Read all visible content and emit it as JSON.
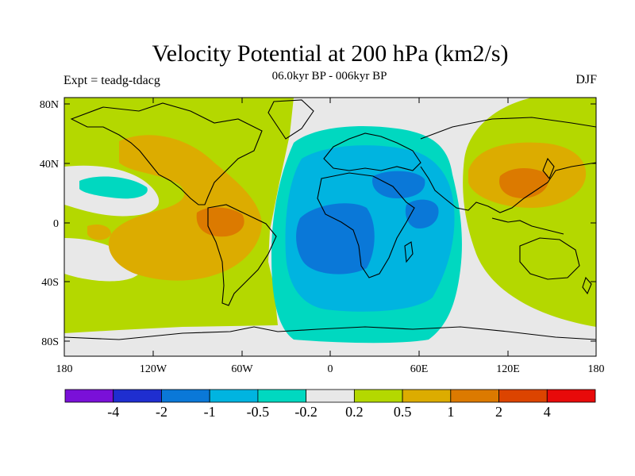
{
  "title": "Velocity Potential at 200 hPa (km2/s)",
  "left_string": "Expt = teadg-tdacg",
  "center_string": "06.0kyr BP - 006kyr BP",
  "right_string": "DJF",
  "axes": {
    "lon_ticks": [
      "180",
      "120W",
      "60W",
      "0",
      "60E",
      "120E",
      "180"
    ],
    "lat_ticks": [
      "80N",
      "40N",
      "0",
      "40S",
      "80S"
    ]
  },
  "colorbar": {
    "colors": [
      "#7a10d8",
      "#1f2ed0",
      "#0a78d8",
      "#00b4e0",
      "#00d8c0",
      "#e8e8e8",
      "#b4d800",
      "#dcac00",
      "#dc7a00",
      "#dc4400",
      "#e80a0a"
    ],
    "labels": [
      "-4",
      "-2",
      "-1",
      "-0.5",
      "-0.2",
      "0.2",
      "0.5",
      "1",
      "2",
      "4"
    ]
  },
  "colors": {
    "ocean_background": "#e8e8e8",
    "coastline": "#000000"
  }
}
